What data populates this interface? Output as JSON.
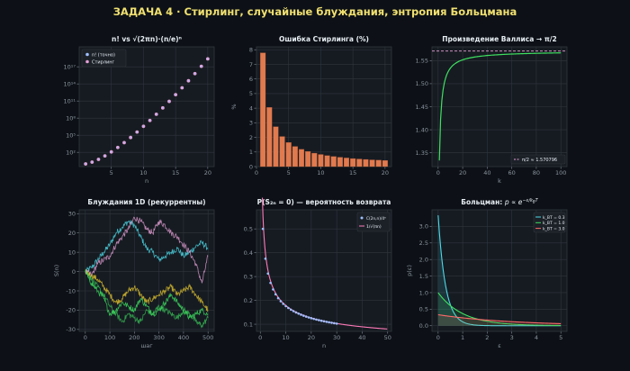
{
  "suptitle": "ЗАДАЧА 4  ·  Стирлинг, случайные блуждания, энтропия Больцмана",
  "colors": {
    "background": "#0d1117",
    "axes_bg": "#161b22",
    "grid": "#30363d",
    "text": "#e6edf3",
    "tick": "#8b949e",
    "title_accent": "#f0e070",
    "pink": "#e6a0d6",
    "blue": "#58a6ff",
    "orange": "#e07a4f",
    "green": "#3fe060",
    "cyan": "#4ddbe8",
    "yellow": "#f0d030",
    "red": "#ff6a6a",
    "rose": "#ff7ab8",
    "lightblue": "#9ec0ff"
  },
  "chart_data": [
    {
      "type": "scatter",
      "title": "n!  vs  √(2πn)·(n/e)ⁿ",
      "xlabel": "n",
      "ylabel": "",
      "yscale": "log",
      "xlim": [
        0,
        21
      ],
      "ylim_log10": [
        -0.5,
        20.5
      ],
      "xticks": [
        5,
        10,
        15,
        20
      ],
      "yticks": [
        {
          "exp": 2,
          "label": "10²"
        },
        {
          "exp": 5,
          "label": "10⁵"
        },
        {
          "exp": 8,
          "label": "10⁸"
        },
        {
          "exp": 11,
          "label": "10¹¹"
        },
        {
          "exp": 14,
          "label": "10¹⁴"
        },
        {
          "exp": 17,
          "label": "10¹⁷"
        }
      ],
      "legend": {
        "position": "top-left",
        "entries": [
          "n! (точно)",
          "Стирлинг"
        ]
      },
      "series": [
        {
          "name": "n! (точно)",
          "x": [
            1,
            2,
            3,
            4,
            5,
            6,
            7,
            8,
            9,
            10,
            11,
            12,
            13,
            14,
            15,
            16,
            17,
            18,
            19,
            20
          ],
          "log10_y": [
            0,
            0.301,
            0.778,
            1.38,
            2.079,
            2.857,
            3.702,
            4.606,
            5.56,
            6.56,
            7.601,
            8.68,
            9.794,
            10.94,
            12.116,
            13.321,
            14.551,
            15.806,
            17.085,
            18.386
          ]
        },
        {
          "name": "Стирлинг",
          "x": [
            1,
            2,
            3,
            4,
            5,
            6,
            7,
            8,
            9,
            10,
            11,
            12,
            13,
            14,
            15,
            16,
            17,
            18,
            19,
            20
          ],
          "log10_y": [
            -0.035,
            0.283,
            0.766,
            1.371,
            2.072,
            2.851,
            3.697,
            4.601,
            5.556,
            6.556,
            7.597,
            8.677,
            9.791,
            10.937,
            12.113,
            13.319,
            14.549,
            15.803,
            17.083,
            18.384
          ]
        }
      ],
      "grid": true
    },
    {
      "type": "bar",
      "title": "Ошибка Стирлинга (%)",
      "xlabel": "",
      "ylabel": "%",
      "xlim": [
        0,
        21
      ],
      "ylim": [
        0,
        8.2
      ],
      "xticks": [
        0,
        5,
        10,
        15,
        20
      ],
      "yticks": [
        0,
        1,
        2,
        3,
        4,
        5,
        6,
        7,
        8
      ],
      "categories": [
        1,
        2,
        3,
        4,
        5,
        6,
        7,
        8,
        9,
        10,
        11,
        12,
        13,
        14,
        15,
        16,
        17,
        18,
        19,
        20
      ],
      "values": [
        7.79,
        4.05,
        2.73,
        2.06,
        1.65,
        1.38,
        1.18,
        1.04,
        0.92,
        0.83,
        0.75,
        0.69,
        0.64,
        0.59,
        0.55,
        0.52,
        0.49,
        0.46,
        0.44,
        0.42
      ],
      "grid": true
    },
    {
      "type": "line",
      "title": "Произведение Валлиса → π/2",
      "xlabel": "k",
      "ylabel": "",
      "xlim": [
        -5,
        105
      ],
      "ylim": [
        1.32,
        1.58
      ],
      "xticks": [
        0,
        20,
        40,
        60,
        80,
        100
      ],
      "yticks": [
        1.35,
        1.4,
        1.45,
        1.5,
        1.55
      ],
      "reference": {
        "value": 1.570796,
        "label": "π/2 ≈ 1.570796"
      },
      "legend": {
        "position": "bottom-right",
        "entries": [
          "π/2 ≈ 1.570796"
        ]
      },
      "series": [
        {
          "name": "",
          "x_range": [
            1,
            100
          ],
          "formula": "wallis_partial_product"
        }
      ],
      "grid": true
    },
    {
      "type": "line",
      "title": "Блуждания 1D (рекуррентны)",
      "xlabel": "шаг",
      "ylabel": "S(n)",
      "xlim": [
        -25,
        525
      ],
      "ylim": [
        -31,
        32
      ],
      "xticks": [
        0,
        100,
        200,
        300,
        400,
        500
      ],
      "yticks": [
        -30,
        -20,
        -10,
        0,
        10,
        20,
        30
      ],
      "series": [
        {
          "name": "",
          "x": [
            0,
            25,
            50,
            75,
            100,
            125,
            150,
            175,
            200,
            225,
            250,
            275,
            300,
            325,
            350,
            375,
            400,
            425,
            450,
            475,
            500
          ],
          "y": [
            0,
            2,
            6,
            10,
            14,
            20,
            23,
            26,
            24,
            18,
            12,
            10,
            6,
            8,
            10,
            12,
            8,
            10,
            13,
            15,
            12
          ]
        },
        {
          "name": "",
          "x": [
            0,
            25,
            50,
            75,
            100,
            125,
            150,
            175,
            200,
            225,
            250,
            275,
            300,
            325,
            350,
            375,
            400,
            425,
            450,
            475,
            500
          ],
          "y": [
            0,
            -2,
            4,
            6,
            8,
            14,
            18,
            22,
            28,
            26,
            22,
            20,
            26,
            24,
            20,
            18,
            14,
            10,
            4,
            -6,
            8
          ]
        },
        {
          "name": "",
          "x": [
            0,
            25,
            50,
            75,
            100,
            125,
            150,
            175,
            200,
            225,
            250,
            275,
            300,
            325,
            350,
            375,
            400,
            425,
            450,
            475,
            500
          ],
          "y": [
            0,
            -2,
            -4,
            -8,
            -12,
            -16,
            -14,
            -10,
            -8,
            -12,
            -16,
            -14,
            -12,
            -10,
            -8,
            -12,
            -10,
            -8,
            -12,
            -16,
            -20
          ]
        },
        {
          "name": "",
          "x": [
            0,
            25,
            50,
            75,
            100,
            125,
            150,
            175,
            200,
            225,
            250,
            275,
            300,
            325,
            350,
            375,
            400,
            425,
            450,
            475,
            500
          ],
          "y": [
            0,
            -6,
            -10,
            -14,
            -22,
            -20,
            -16,
            -18,
            -20,
            -14,
            -18,
            -22,
            -20,
            -16,
            -12,
            -16,
            -20,
            -24,
            -22,
            -20,
            -22
          ]
        },
        {
          "name": "",
          "x": [
            0,
            25,
            50,
            75,
            100,
            125,
            150,
            175,
            200,
            225,
            250,
            275,
            300,
            325,
            350,
            375,
            400,
            425,
            450,
            475,
            500
          ],
          "y": [
            0,
            -4,
            -8,
            -12,
            -18,
            -22,
            -26,
            -22,
            -24,
            -26,
            -20,
            -22,
            -18,
            -20,
            -22,
            -24,
            -20,
            -22,
            -26,
            -28,
            -24
          ]
        }
      ],
      "grid": true
    },
    {
      "type": "line",
      "title": "P(S₂ₙ = 0) — вероятность возврата",
      "xlabel": "n",
      "ylabel": "",
      "xlim": [
        -1.5,
        51.5
      ],
      "ylim": [
        0.07,
        0.58
      ],
      "xticks": [
        0,
        10,
        20,
        30,
        40,
        50
      ],
      "yticks": [
        0.1,
        0.2,
        0.3,
        0.4,
        0.5
      ],
      "legend": {
        "position": "top-right",
        "entries": [
          "C(2n,n)/4ⁿ",
          "1/√(πn)"
        ]
      },
      "series": [
        {
          "name": "C(2n,n)/4ⁿ",
          "x_range": [
            1,
            30
          ],
          "formula": "binom_return"
        },
        {
          "name": "1/√(πn)",
          "x_range": [
            0.8,
            50
          ],
          "formula": "inv_sqrt_pi_n"
        }
      ],
      "grid": true
    },
    {
      "type": "area",
      "title": "Больцман: p ∝ e^{−ε/k_BT}",
      "title_main": "Больцман: ",
      "title_math": "p ∝ e",
      "title_sup": "−ε/k",
      "title_sub": "B",
      "title_sup_end": "T",
      "xlabel": "ε",
      "ylabel": "p(ε)",
      "xlim": [
        -0.25,
        5.25
      ],
      "ylim": [
        -0.17,
        3.5
      ],
      "xticks": [
        0,
        1,
        2,
        3,
        4,
        5
      ],
      "yticks": [
        0.0,
        0.5,
        1.0,
        1.5,
        2.0,
        2.5,
        3.0
      ],
      "legend": {
        "position": "top-right",
        "entries": [
          "k_BT = 0.3",
          "k_BT = 1.0",
          "k_BT = 3.0"
        ]
      },
      "series": [
        {
          "name": "k_BT = 0.3",
          "kT": 0.3
        },
        {
          "name": "k_BT = 1.0",
          "kT": 1.0
        },
        {
          "name": "k_BT = 3.0",
          "kT": 3.0
        }
      ],
      "grid": true
    }
  ]
}
